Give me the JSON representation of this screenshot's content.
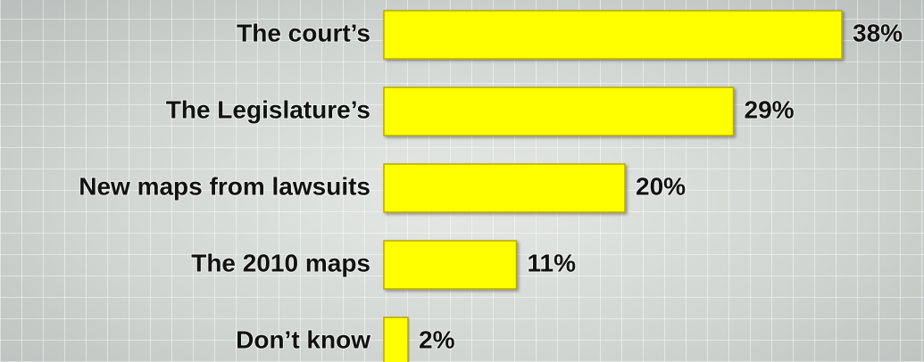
{
  "chart_data": {
    "type": "bar",
    "orientation": "horizontal",
    "categories": [
      "The court’s",
      "The Legislature’s",
      "New maps from lawsuits",
      "The 2010 maps",
      "Don’t know"
    ],
    "values": [
      38,
      29,
      20,
      11,
      2
    ],
    "value_labels": [
      "38%",
      "29%",
      "20%",
      "11%",
      "2%"
    ],
    "color": "#ffff00"
  }
}
